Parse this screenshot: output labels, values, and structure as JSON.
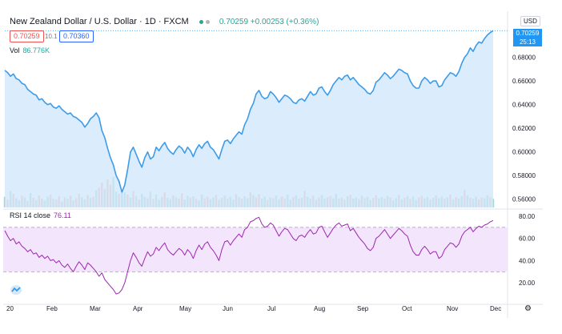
{
  "header": {
    "symbol": "New Zealand Dollar / U.S. Dollar · 1D · FXCM",
    "quote": "0.70259 +0.00253 (+0.36%)",
    "bid": "0.70259",
    "spread": "10.1",
    "ask": "0.70360",
    "vol_label": "Vol",
    "vol_value": "86.776K",
    "rsi_label": "RSI 14 close",
    "rsi_value": "76.11",
    "currency": "USD",
    "current_price_tag": "0.70259",
    "countdown_tag": "25:13"
  },
  "colors": {
    "price_line": "#3d9be9",
    "price_fill": "#cfe7fb",
    "rsi_line": "#9c27b0",
    "rsi_band": "#f3e5fb",
    "vol_up": "#a8d8d1",
    "vol_down": "#f7b8b5",
    "accent": "#2196f3"
  },
  "chart_data": [
    {
      "type": "area",
      "title": "New Zealand Dollar / U.S. Dollar · 1D · FXCM",
      "x_ticks": [
        "20",
        "Feb",
        "Mar",
        "Apr",
        "May",
        "Jun",
        "Jul",
        "Aug",
        "Sep",
        "Oct",
        "Nov",
        "Dec"
      ],
      "y_ticks": [
        "0.56000",
        "0.58000",
        "0.60000",
        "0.62000",
        "0.64000",
        "0.66000",
        "0.68000"
      ],
      "ylim": [
        0.553,
        0.7055
      ],
      "series": [
        {
          "values": [
            0.669,
            0.667,
            0.664,
            0.666,
            0.662,
            0.661,
            0.658,
            0.657,
            0.653,
            0.651,
            0.649,
            0.648,
            0.644,
            0.645,
            0.642,
            0.64,
            0.641,
            0.638,
            0.637,
            0.639,
            0.636,
            0.634,
            0.632,
            0.633,
            0.63,
            0.629,
            0.627,
            0.625,
            0.621,
            0.624,
            0.628,
            0.63,
            0.633,
            0.629,
            0.618,
            0.612,
            0.603,
            0.595,
            0.589,
            0.58,
            0.575,
            0.566,
            0.572,
            0.585,
            0.6,
            0.604,
            0.598,
            0.592,
            0.587,
            0.595,
            0.6,
            0.594,
            0.596,
            0.604,
            0.601,
            0.605,
            0.608,
            0.603,
            0.6,
            0.598,
            0.602,
            0.605,
            0.603,
            0.599,
            0.604,
            0.601,
            0.596,
            0.602,
            0.606,
            0.603,
            0.607,
            0.609,
            0.604,
            0.602,
            0.598,
            0.594,
            0.602,
            0.609,
            0.61,
            0.607,
            0.611,
            0.614,
            0.617,
            0.615,
            0.623,
            0.628,
            0.636,
            0.641,
            0.649,
            0.652,
            0.647,
            0.645,
            0.646,
            0.651,
            0.649,
            0.646,
            0.642,
            0.645,
            0.648,
            0.647,
            0.645,
            0.642,
            0.641,
            0.644,
            0.645,
            0.643,
            0.647,
            0.651,
            0.648,
            0.649,
            0.654,
            0.655,
            0.651,
            0.648,
            0.652,
            0.657,
            0.66,
            0.663,
            0.661,
            0.664,
            0.665,
            0.661,
            0.663,
            0.66,
            0.657,
            0.655,
            0.653,
            0.65,
            0.649,
            0.652,
            0.659,
            0.661,
            0.664,
            0.667,
            0.665,
            0.662,
            0.664,
            0.667,
            0.67,
            0.669,
            0.667,
            0.666,
            0.66,
            0.656,
            0.654,
            0.654,
            0.66,
            0.663,
            0.661,
            0.658,
            0.66,
            0.66,
            0.655,
            0.656,
            0.661,
            0.664,
            0.667,
            0.666,
            0.664,
            0.668,
            0.675,
            0.68,
            0.683,
            0.688,
            0.685,
            0.69,
            0.693,
            0.692,
            0.696,
            0.699,
            0.701,
            0.7026
          ]
        }
      ]
    },
    {
      "type": "bar",
      "title": "Vol",
      "values": [
        30,
        22,
        45,
        38,
        26,
        20,
        33,
        28,
        18,
        40,
        27,
        21,
        34,
        25,
        19,
        30,
        36,
        24,
        22,
        31,
        17,
        28,
        25,
        33,
        20,
        26,
        38,
        29,
        23,
        35,
        27,
        30,
        48,
        55,
        70,
        52,
        78,
        64,
        85,
        44,
        38,
        50,
        42,
        36,
        28,
        46,
        32,
        22,
        38,
        30,
        26,
        44,
        24,
        36,
        21,
        30,
        42,
        27,
        23,
        34,
        29,
        25,
        40,
        22,
        33,
        28,
        31,
        24,
        20,
        36,
        26,
        30,
        23,
        28,
        35,
        21,
        27,
        33,
        25,
        30,
        22,
        37,
        29,
        24,
        31,
        26,
        43,
        34,
        28,
        37,
        24,
        30,
        21,
        28,
        26,
        33,
        23,
        31,
        25,
        36,
        22,
        29,
        34,
        24,
        27,
        46,
        30,
        25,
        33,
        22,
        28,
        35,
        24,
        29,
        32,
        26,
        38,
        24,
        27,
        22,
        31,
        36,
        25,
        28,
        23,
        33,
        26,
        30,
        21,
        27,
        34,
        25,
        29,
        24,
        32,
        28,
        20,
        26,
        35,
        23,
        27,
        31,
        24,
        30,
        21,
        28,
        33,
        25,
        29,
        22,
        27,
        34,
        26,
        30,
        24,
        28,
        36,
        22,
        29,
        25,
        32,
        48,
        33,
        27,
        24,
        30,
        22,
        28,
        26,
        34,
        29,
        24
      ],
      "colors": [
        "up",
        "down",
        "up",
        "down",
        "up",
        "up",
        "down",
        "up",
        "down",
        "up",
        "down",
        "up",
        "down",
        "down",
        "up",
        "up",
        "down",
        "up",
        "down",
        "down",
        "up",
        "down",
        "up",
        "down",
        "up",
        "down",
        "down",
        "up",
        "up",
        "down",
        "up",
        "down",
        "up",
        "down",
        "down",
        "up",
        "down",
        "down",
        "up",
        "up",
        "down",
        "up",
        "up",
        "down",
        "up",
        "down",
        "up",
        "down",
        "up",
        "up",
        "down",
        "up",
        "down",
        "up",
        "up",
        "down",
        "down",
        "up",
        "up",
        "down",
        "up",
        "down",
        "down",
        "up",
        "up",
        "down",
        "up",
        "down",
        "up",
        "up",
        "down",
        "down",
        "up",
        "up",
        "down",
        "up",
        "down",
        "up",
        "down",
        "up",
        "up",
        "down",
        "up",
        "down",
        "up",
        "up",
        "down",
        "up",
        "down",
        "down",
        "up",
        "up",
        "down",
        "up",
        "down",
        "up",
        "up",
        "down",
        "down",
        "up",
        "up",
        "down",
        "up",
        "down",
        "up",
        "down",
        "up",
        "up",
        "down",
        "up",
        "down",
        "up",
        "up",
        "down",
        "down",
        "up",
        "up",
        "down",
        "up",
        "down",
        "up",
        "down",
        "up",
        "up",
        "down",
        "up",
        "down",
        "up",
        "up",
        "down",
        "down",
        "up",
        "up",
        "down",
        "up",
        "down",
        "up",
        "up",
        "down",
        "up",
        "down",
        "up",
        "down",
        "up",
        "up",
        "down",
        "down",
        "up",
        "up",
        "down",
        "up",
        "down",
        "up",
        "up",
        "down",
        "up",
        "down",
        "up",
        "down",
        "up",
        "up",
        "down",
        "up",
        "down",
        "up",
        "up",
        "down",
        "down",
        "up",
        "up",
        "down",
        "up",
        "down",
        "up",
        "up"
      ]
    },
    {
      "type": "line",
      "title": "RSI 14 close",
      "y_ticks": [
        "20.00",
        "40.00",
        "60.00",
        "80.00"
      ],
      "ylim": [
        5,
        85
      ],
      "bands": [
        30,
        70
      ],
      "series": [
        {
          "values": [
            67,
            62,
            58,
            60,
            55,
            57,
            53,
            51,
            48,
            50,
            46,
            47,
            43,
            45,
            42,
            44,
            40,
            41,
            38,
            40,
            36,
            34,
            37,
            33,
            30,
            35,
            39,
            36,
            32,
            38,
            36,
            33,
            30,
            26,
            29,
            23,
            20,
            17,
            14,
            10,
            11,
            14,
            20,
            30,
            40,
            47,
            43,
            38,
            35,
            42,
            48,
            44,
            46,
            52,
            49,
            53,
            56,
            50,
            47,
            45,
            48,
            51,
            49,
            45,
            50,
            47,
            42,
            49,
            54,
            50,
            55,
            57,
            52,
            49,
            45,
            40,
            50,
            57,
            58,
            54,
            58,
            61,
            64,
            61,
            68,
            70,
            75,
            76,
            78,
            79,
            73,
            70,
            71,
            74,
            72,
            67,
            62,
            66,
            69,
            68,
            64,
            60,
            58,
            62,
            63,
            61,
            65,
            68,
            64,
            65,
            70,
            71,
            66,
            61,
            65,
            69,
            72,
            74,
            71,
            72,
            73,
            67,
            69,
            65,
            61,
            58,
            55,
            51,
            49,
            52,
            60,
            62,
            65,
            68,
            64,
            60,
            63,
            66,
            69,
            67,
            64,
            62,
            54,
            48,
            45,
            45,
            50,
            53,
            50,
            46,
            48,
            48,
            42,
            44,
            50,
            53,
            56,
            55,
            52,
            55,
            62,
            66,
            68,
            70,
            66,
            69,
            71,
            70,
            72,
            73,
            75,
            76.11
          ]
        }
      ]
    }
  ]
}
